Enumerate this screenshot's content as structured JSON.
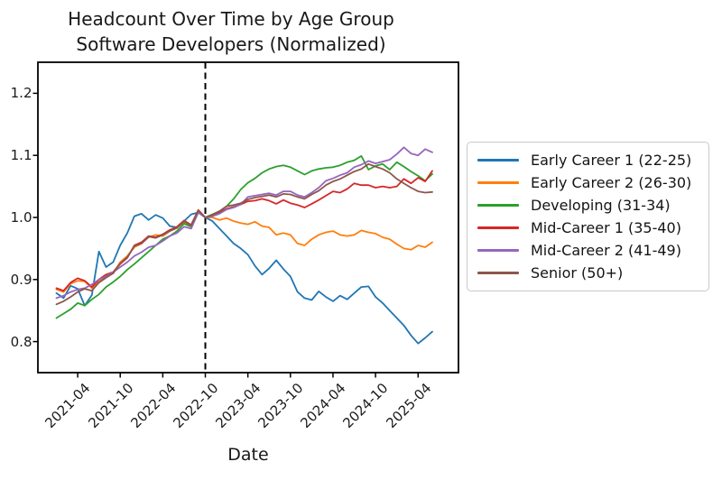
{
  "ui": {
    "title_line1": "Headcount Over Time by Age Group",
    "title_line2": "Software Developers (Normalized)",
    "xlabel": "Date"
  },
  "chart_data": {
    "type": "line",
    "title": "Headcount Over Time by Age Group\nSoftware Developers (Normalized)",
    "xlabel": "Date",
    "ylabel": "",
    "grid": false,
    "legend_position": "center right, outside axes",
    "ylim": [
      0.75,
      1.25
    ],
    "y_ticks": {
      "labels": [
        "0.8",
        "0.9",
        "1.0",
        "1.1",
        "1.2"
      ],
      "values": [
        0.8,
        0.9,
        1.0,
        1.1,
        1.2
      ]
    },
    "x_ticks": {
      "labels": [
        "2021-04",
        "2021-10",
        "2022-04",
        "2022-10",
        "2023-04",
        "2023-10",
        "2024-04",
        "2024-10",
        "2025-04"
      ],
      "month_index": [
        3,
        9,
        15,
        21,
        27,
        33,
        39,
        45,
        51
      ]
    },
    "vline": {
      "x": "2022-10",
      "style": "dashed",
      "color": "#000000",
      "note": "normalization point, all series = 1.0"
    },
    "x": [
      "2021-01",
      "2021-02",
      "2021-03",
      "2021-04",
      "2021-05",
      "2021-06",
      "2021-07",
      "2021-08",
      "2021-09",
      "2021-10",
      "2021-11",
      "2021-12",
      "2022-01",
      "2022-02",
      "2022-03",
      "2022-04",
      "2022-05",
      "2022-06",
      "2022-07",
      "2022-08",
      "2022-09",
      "2022-10",
      "2022-11",
      "2022-12",
      "2023-01",
      "2023-02",
      "2023-03",
      "2023-04",
      "2023-05",
      "2023-06",
      "2023-07",
      "2023-08",
      "2023-09",
      "2023-10",
      "2023-11",
      "2023-12",
      "2024-01",
      "2024-02",
      "2024-03",
      "2024-04",
      "2024-05",
      "2024-06",
      "2024-07",
      "2024-08",
      "2024-09",
      "2024-10",
      "2024-11",
      "2024-12",
      "2025-01",
      "2025-02",
      "2025-03",
      "2025-04",
      "2025-05",
      "2025-06"
    ],
    "series": [
      {
        "name": "Early Career 1 (22-25)",
        "color": "#1f77b4",
        "values": [
          0.878,
          0.87,
          0.89,
          0.885,
          0.858,
          0.875,
          0.945,
          0.92,
          0.928,
          0.955,
          0.975,
          1.002,
          1.006,
          0.996,
          1.004,
          0.999,
          0.986,
          0.984,
          0.994,
          1.005,
          1.008,
          1.0,
          0.994,
          0.982,
          0.97,
          0.958,
          0.95,
          0.94,
          0.922,
          0.908,
          0.918,
          0.931,
          0.917,
          0.905,
          0.88,
          0.87,
          0.867,
          0.881,
          0.872,
          0.865,
          0.874,
          0.868,
          0.878,
          0.888,
          0.889,
          0.872,
          0.862,
          0.85,
          0.838,
          0.826,
          0.81,
          0.797,
          0.806,
          0.816
        ]
      },
      {
        "name": "Early Career 2 (26-30)",
        "color": "#ff7f0e",
        "values": [
          0.884,
          0.88,
          0.893,
          0.898,
          0.897,
          0.886,
          0.898,
          0.905,
          0.91,
          0.928,
          0.938,
          0.952,
          0.958,
          0.968,
          0.972,
          0.97,
          0.978,
          0.984,
          0.992,
          0.988,
          1.01,
          1.0,
          1.0,
          0.996,
          0.999,
          0.994,
          0.991,
          0.989,
          0.993,
          0.986,
          0.984,
          0.972,
          0.975,
          0.972,
          0.958,
          0.955,
          0.965,
          0.972,
          0.976,
          0.978,
          0.972,
          0.97,
          0.972,
          0.979,
          0.976,
          0.974,
          0.968,
          0.965,
          0.957,
          0.95,
          0.948,
          0.955,
          0.952,
          0.96
        ]
      },
      {
        "name": "Developing (31-34)",
        "color": "#2ca02c",
        "values": [
          0.838,
          0.845,
          0.852,
          0.862,
          0.858,
          0.868,
          0.876,
          0.888,
          0.896,
          0.905,
          0.916,
          0.925,
          0.935,
          0.945,
          0.955,
          0.965,
          0.97,
          0.978,
          0.99,
          0.985,
          1.008,
          1.0,
          1.005,
          1.01,
          1.018,
          1.03,
          1.045,
          1.056,
          1.063,
          1.072,
          1.078,
          1.082,
          1.084,
          1.081,
          1.075,
          1.069,
          1.075,
          1.078,
          1.08,
          1.081,
          1.084,
          1.089,
          1.092,
          1.099,
          1.077,
          1.083,
          1.086,
          1.077,
          1.089,
          1.082,
          1.074,
          1.067,
          1.059,
          1.07
        ]
      },
      {
        "name": "Mid-Career 1 (35-40)",
        "color": "#d62728",
        "values": [
          0.886,
          0.882,
          0.895,
          0.902,
          0.898,
          0.888,
          0.9,
          0.908,
          0.912,
          0.925,
          0.935,
          0.955,
          0.96,
          0.97,
          0.968,
          0.973,
          0.98,
          0.985,
          0.995,
          0.988,
          1.012,
          1.0,
          1.003,
          1.008,
          1.014,
          1.017,
          1.021,
          1.026,
          1.027,
          1.03,
          1.027,
          1.022,
          1.028,
          1.023,
          1.02,
          1.016,
          1.022,
          1.028,
          1.035,
          1.042,
          1.04,
          1.046,
          1.055,
          1.052,
          1.052,
          1.048,
          1.05,
          1.048,
          1.05,
          1.062,
          1.055,
          1.064,
          1.058,
          1.075
        ]
      },
      {
        "name": "Mid-Career 2 (41-49)",
        "color": "#9467bd",
        "values": [
          0.87,
          0.874,
          0.88,
          0.884,
          0.886,
          0.892,
          0.9,
          0.905,
          0.912,
          0.92,
          0.928,
          0.938,
          0.944,
          0.952,
          0.955,
          0.962,
          0.97,
          0.975,
          0.985,
          0.982,
          1.008,
          1.0,
          1.002,
          1.006,
          1.013,
          1.016,
          1.021,
          1.033,
          1.035,
          1.037,
          1.039,
          1.036,
          1.042,
          1.042,
          1.036,
          1.033,
          1.04,
          1.048,
          1.059,
          1.063,
          1.068,
          1.072,
          1.081,
          1.085,
          1.091,
          1.087,
          1.09,
          1.093,
          1.102,
          1.113,
          1.103,
          1.1,
          1.11,
          1.105
        ]
      },
      {
        "name": "Senior (50+)",
        "color": "#8c564b",
        "values": [
          0.86,
          0.865,
          0.872,
          0.88,
          0.885,
          0.882,
          0.895,
          0.903,
          0.91,
          0.926,
          0.936,
          0.954,
          0.958,
          0.969,
          0.967,
          0.972,
          0.978,
          0.983,
          0.994,
          0.987,
          1.011,
          1.0,
          1.004,
          1.01,
          1.018,
          1.02,
          1.023,
          1.029,
          1.032,
          1.034,
          1.036,
          1.033,
          1.038,
          1.037,
          1.033,
          1.03,
          1.037,
          1.043,
          1.052,
          1.058,
          1.062,
          1.068,
          1.074,
          1.078,
          1.086,
          1.082,
          1.078,
          1.072,
          1.062,
          1.055,
          1.048,
          1.042,
          1.04,
          1.041
        ]
      }
    ]
  }
}
